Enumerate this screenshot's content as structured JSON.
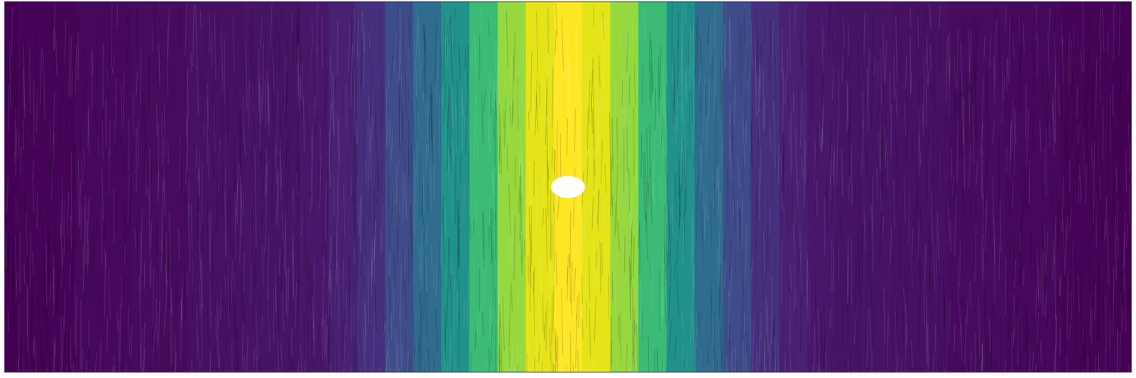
{
  "chart_data": {
    "type": "heatmap",
    "x": [
      0,
      0.025,
      0.05,
      0.075,
      0.1,
      0.125,
      0.15,
      0.175,
      0.2,
      0.225,
      0.25,
      0.275,
      0.3,
      0.325,
      0.35,
      0.375,
      0.4,
      0.425,
      0.45,
      0.475,
      0.5,
      0.525,
      0.55,
      0.575,
      0.6,
      0.625,
      0.65,
      0.675,
      0.7,
      0.725,
      0.75,
      0.775,
      0.8,
      0.825,
      0.85,
      0.875,
      0.9,
      0.925,
      0.95,
      0.975,
      1
    ],
    "values": [
      0.0,
      0.01,
      0.01,
      0.02,
      0.02,
      0.03,
      0.03,
      0.04,
      0.04,
      0.05,
      0.05,
      0.06,
      0.09,
      0.14,
      0.23,
      0.35,
      0.5,
      0.68,
      0.84,
      0.96,
      1.0,
      0.96,
      0.84,
      0.68,
      0.5,
      0.35,
      0.23,
      0.14,
      0.09,
      0.06,
      0.05,
      0.05,
      0.04,
      0.04,
      0.03,
      0.03,
      0.02,
      0.02,
      0.01,
      0.01,
      0.0
    ],
    "xlim": [
      0,
      1
    ],
    "color_range": [
      0,
      1
    ],
    "tick_labels": false
  }
}
